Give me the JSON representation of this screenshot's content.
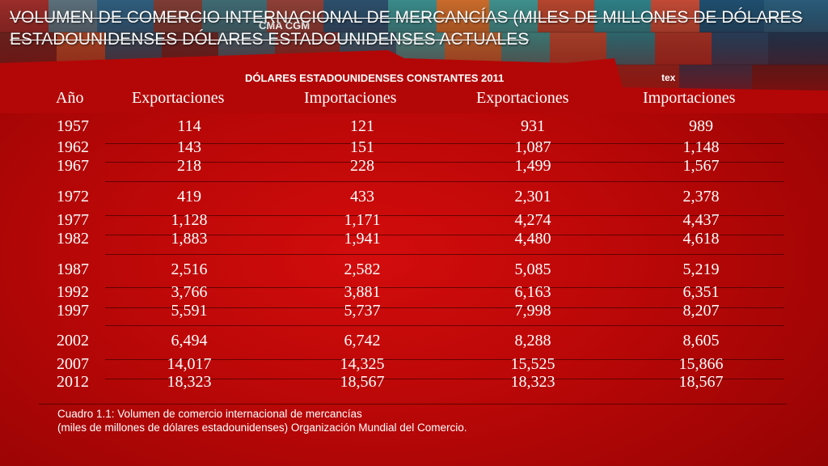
{
  "title": "VOLUMEN DE COMERCIO INTERNACIONAL DE MERCANCÍAS (MILES DE MILLONES DE DÓLARES ESTADOUNIDENSES DÓLARES ESTADOUNIDENSES ACTUALES",
  "subtitle": "DÓLARES ESTADOUNIDENSES CONSTANTES 2011",
  "photo_labels": [
    "CMA CGM",
    "tex"
  ],
  "table": {
    "headers": [
      "Año",
      "Exportaciones",
      "Importaciones",
      "Exportaciones",
      "Importaciones"
    ],
    "rows": [
      [
        "1957",
        "114",
        "121",
        "931",
        "989"
      ],
      [
        "1962",
        "143",
        "151",
        "1,087",
        "1,148"
      ],
      [
        "1967",
        "218",
        "228",
        "1,499",
        "1,567"
      ],
      [
        "1972",
        "419",
        "433",
        "2,301",
        "2,378"
      ],
      [
        "1977",
        "1,128",
        "1,171",
        "4,274",
        "4,437"
      ],
      [
        "1982",
        "1,883",
        "1,941",
        "4,480",
        "4,618"
      ],
      [
        "1987",
        "2,516",
        "2,582",
        "5,085",
        "5,219"
      ],
      [
        "1992",
        "3,766",
        "3,881",
        "6,163",
        "6,351"
      ],
      [
        "1997",
        "5,591",
        "5,737",
        "7,998",
        "8,207"
      ],
      [
        "2002",
        "6,494",
        "6,742",
        "8,288",
        "8,605"
      ],
      [
        "2007",
        "14,017",
        "14,325",
        "15,525",
        "15,866"
      ],
      [
        "2012",
        "18,323",
        "18,567",
        "18,323",
        "18,567"
      ]
    ]
  },
  "caption": {
    "line1": "Cuadro 1.1: Volumen de comercio internacional de mercancías",
    "line2": "(miles de millones de dólares estadounidenses) Organización Mundial del Comercio."
  },
  "colors": {
    "background": "#c20808",
    "text": "#ffffff",
    "rule": "#3c0000"
  }
}
